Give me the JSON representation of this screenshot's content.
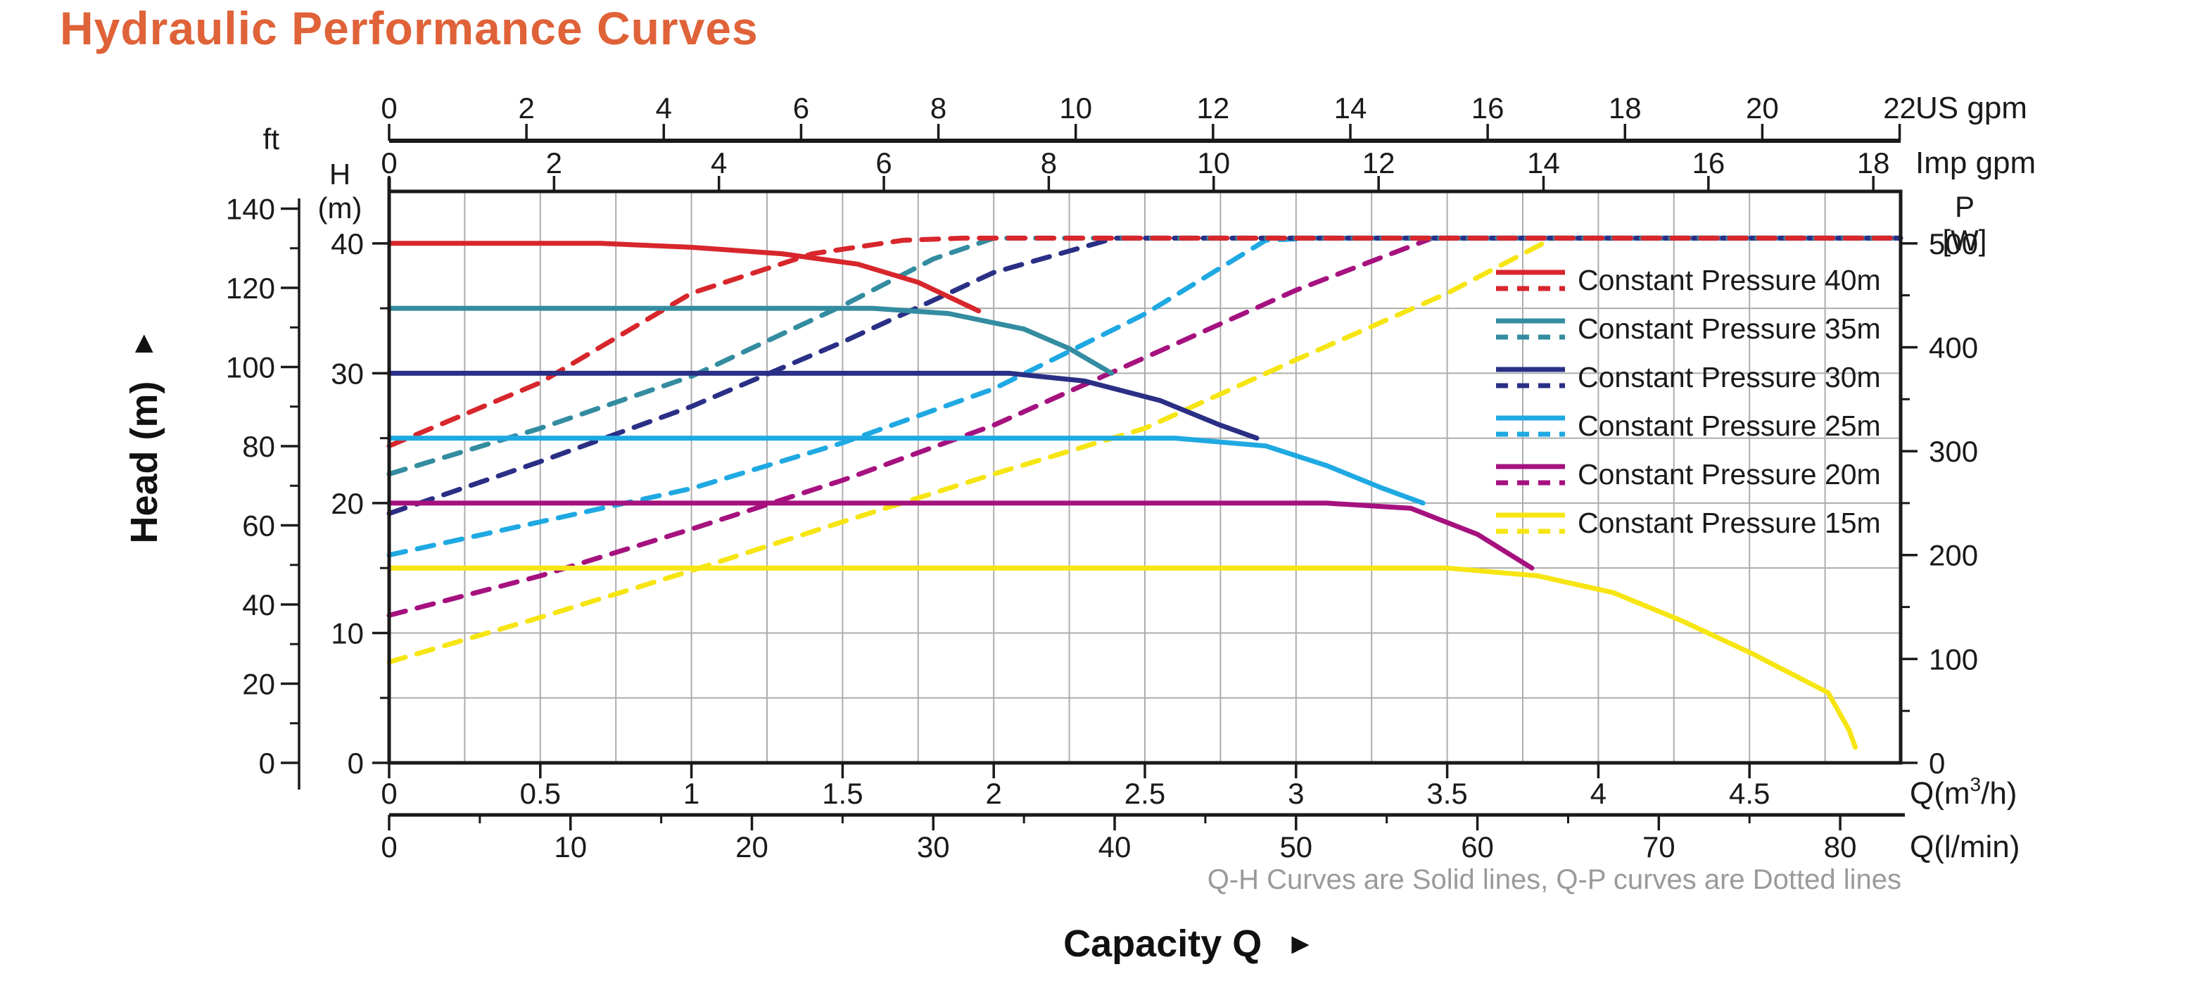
{
  "title": {
    "text": "Hydraulic Performance Curves"
  },
  "labels": {
    "x_axis_title": "Capacity Q",
    "y_axis_title": "Head (m)",
    "right_arrow": "►",
    "up_arrow": "▲"
  },
  "chart_data": {
    "type": "line",
    "title": "Hydraulic Performance Curves",
    "note": "Q-H Curves are Solid lines, Q-P curves are Dotted lines",
    "xlabel": "Capacity Q",
    "ylabel": "Head (m)",
    "layout": {
      "q_max_m3h": 5.0,
      "h_max_m": 44,
      "grid_v_step_m3h": 0.25,
      "grid_h_step_m": 5,
      "legend_position": "right-inside"
    },
    "axes": {
      "x_top_us_gpm": {
        "unit": "US gpm",
        "ticks": [
          0,
          2,
          4,
          6,
          8,
          10,
          12,
          14,
          16,
          18,
          20,
          22
        ],
        "m3h_per_unit": 0.22712
      },
      "x_top_imp_gpm": {
        "unit": "Imp gpm",
        "ticks": [
          0,
          2,
          4,
          6,
          8,
          10,
          12,
          14,
          16,
          18
        ],
        "m3h_per_unit": 0.27276
      },
      "x_bottom_m3h": {
        "label": "Q(m³/h)",
        "label_parts": [
          "Q(m",
          "3",
          "/h)"
        ],
        "ticks": [
          0,
          0.5,
          1,
          1.5,
          2,
          2.5,
          3,
          3.5,
          4,
          4.5
        ]
      },
      "x_bottom_lmin": {
        "label": "Q(l/min)",
        "ticks": [
          0,
          10,
          20,
          30,
          40,
          50,
          60,
          70,
          80
        ],
        "minor_ticks": [
          5,
          15,
          25,
          35,
          45,
          55,
          65,
          75
        ],
        "m3h_per_unit": 0.06
      },
      "y_left_h_m": {
        "header_lines": [
          "H",
          "(m)"
        ],
        "ticks": [
          0,
          10,
          20,
          30,
          40
        ],
        "minor_ticks": [
          5,
          15,
          25,
          35
        ]
      },
      "y_left_ft": {
        "header": "ft",
        "ticks": [
          0,
          20,
          40,
          60,
          80,
          100,
          120,
          140
        ],
        "minor_ticks": [
          10,
          30,
          50,
          70,
          90,
          110,
          130
        ],
        "m_per_unit": 0.3048
      },
      "y_right_p_w": {
        "header_lines": [
          "P",
          "[W]"
        ],
        "ticks": [
          0,
          100,
          200,
          300,
          400,
          500
        ],
        "minor_ticks": [
          50,
          150,
          250,
          350,
          450
        ],
        "w_per_m": 12.5
      }
    },
    "series": [
      {
        "name": "Constant Pressure 40m",
        "pressure_m": 40,
        "color": "#D7262C",
        "qh": [
          [
            0,
            40
          ],
          [
            0.7,
            40
          ],
          [
            1.0,
            39.7
          ],
          [
            1.3,
            39.2
          ],
          [
            1.55,
            38.4
          ],
          [
            1.75,
            37.0
          ],
          [
            1.95,
            34.8
          ]
        ],
        "qp": [
          [
            0,
            305
          ],
          [
            0.5,
            366
          ],
          [
            1.0,
            452
          ],
          [
            1.4,
            490
          ],
          [
            1.7,
            503
          ],
          [
            1.9,
            505
          ],
          [
            5.0,
            505
          ]
        ]
      },
      {
        "name": "Constant Pressure 35m",
        "pressure_m": 35,
        "color": "#338CA0",
        "qh": [
          [
            0,
            35
          ],
          [
            1.6,
            35
          ],
          [
            1.85,
            34.6
          ],
          [
            2.1,
            33.4
          ],
          [
            2.25,
            31.9
          ],
          [
            2.39,
            30.0
          ]
        ],
        "qp": [
          [
            0,
            278
          ],
          [
            0.5,
            322
          ],
          [
            1.0,
            372
          ],
          [
            1.5,
            440
          ],
          [
            1.8,
            485
          ],
          [
            2.0,
            505
          ],
          [
            5.0,
            505
          ]
        ]
      },
      {
        "name": "Constant Pressure 30m",
        "pressure_m": 30,
        "color": "#2A2F85",
        "qh": [
          [
            0,
            30
          ],
          [
            2.05,
            30
          ],
          [
            2.3,
            29.4
          ],
          [
            2.55,
            27.9
          ],
          [
            2.75,
            26.0
          ],
          [
            2.87,
            25.0
          ]
        ],
        "qp": [
          [
            0,
            240
          ],
          [
            0.5,
            290
          ],
          [
            1.0,
            343
          ],
          [
            1.5,
            405
          ],
          [
            2.0,
            472
          ],
          [
            2.4,
            505
          ],
          [
            5.0,
            505
          ]
        ]
      },
      {
        "name": "Constant Pressure 25m",
        "pressure_m": 25,
        "color": "#1FA9E2",
        "qh": [
          [
            0,
            25
          ],
          [
            2.6,
            25
          ],
          [
            2.9,
            24.4
          ],
          [
            3.1,
            22.9
          ],
          [
            3.28,
            21.2
          ],
          [
            3.42,
            20.0
          ]
        ],
        "qp": [
          [
            0,
            200
          ],
          [
            0.5,
            232
          ],
          [
            1.0,
            264
          ],
          [
            1.5,
            308
          ],
          [
            2.0,
            360
          ],
          [
            2.5,
            432
          ],
          [
            2.9,
            503
          ],
          [
            3.05,
            505
          ],
          [
            5.0,
            505
          ]
        ]
      },
      {
        "name": "Constant Pressure 20m",
        "pressure_m": 20,
        "color": "#A5117E",
        "qh": [
          [
            0,
            20
          ],
          [
            3.1,
            20
          ],
          [
            3.38,
            19.6
          ],
          [
            3.6,
            17.6
          ],
          [
            3.78,
            15.0
          ]
        ],
        "qp": [
          [
            0,
            142
          ],
          [
            0.5,
            180
          ],
          [
            1.0,
            225
          ],
          [
            1.5,
            272
          ],
          [
            2.0,
            325
          ],
          [
            2.5,
            390
          ],
          [
            3.0,
            455
          ],
          [
            3.45,
            505
          ],
          [
            5.0,
            505
          ]
        ]
      },
      {
        "name": "Constant Pressure 15m",
        "pressure_m": 15,
        "color": "#F6E512",
        "qh": [
          [
            0,
            15
          ],
          [
            3.5,
            15
          ],
          [
            3.8,
            14.4
          ],
          [
            4.05,
            13.1
          ],
          [
            4.27,
            11.0
          ],
          [
            4.51,
            8.4
          ],
          [
            4.76,
            5.4
          ],
          [
            4.83,
            2.5
          ],
          [
            4.85,
            1.2
          ]
        ],
        "qp": [
          [
            0,
            97
          ],
          [
            0.5,
            140
          ],
          [
            1.0,
            185
          ],
          [
            1.5,
            232
          ],
          [
            2.0,
            278
          ],
          [
            2.5,
            322
          ],
          [
            3.0,
            388
          ],
          [
            3.5,
            452
          ],
          [
            3.85,
            505
          ],
          [
            5.0,
            505
          ]
        ]
      }
    ],
    "style": {
      "grid_color": "#ADADAD",
      "axis_color": "#1a1a1a",
      "note_color": "#9a9a9a",
      "title_color": "#DF6238"
    }
  }
}
